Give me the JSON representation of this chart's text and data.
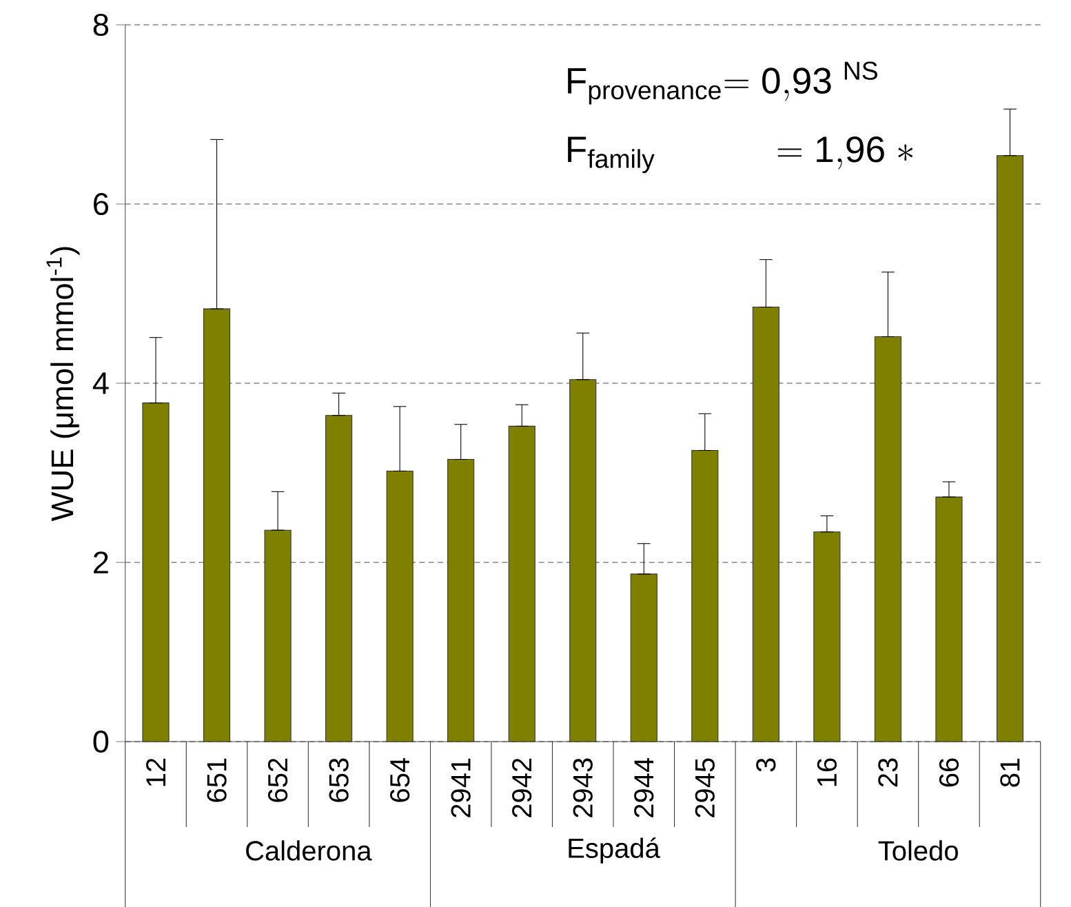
{
  "chart_data": {
    "type": "bar",
    "ylabel": "WUE (μmol mmol$^{-1}$)",
    "categories": [
      "12",
      "651",
      "652",
      "653",
      "654",
      "2941",
      "2942",
      "2943",
      "2944",
      "2945",
      "3",
      "16",
      "23",
      "66",
      "81"
    ],
    "values": [
      3.78,
      4.83,
      2.36,
      3.64,
      3.02,
      3.15,
      3.52,
      4.04,
      1.87,
      3.25,
      4.85,
      2.34,
      4.52,
      2.73,
      6.54
    ],
    "errors": [
      [
        3.78,
        4.51
      ],
      [
        4.83,
        6.72
      ],
      [
        2.36,
        2.79
      ],
      [
        3.64,
        3.89
      ],
      [
        3.02,
        3.74
      ],
      [
        3.15,
        3.54
      ],
      [
        3.52,
        3.76
      ],
      [
        4.04,
        4.56
      ],
      [
        1.87,
        2.21
      ],
      [
        3.25,
        3.66
      ],
      [
        4.85,
        5.38
      ],
      [
        2.34,
        2.52
      ],
      [
        4.52,
        5.24
      ],
      [
        2.73,
        2.9
      ],
      [
        6.54,
        7.06
      ]
    ],
    "color": "#808000",
    "ylim": [
      0,
      8
    ],
    "yticks": [
      0,
      2,
      4,
      6,
      8
    ],
    "grid": "y",
    "annotations": [
      "\\mathrm{F}_{\\mathrm{provenance}}\\mathrm{=0{,}93}\\ ^{\\mathrm{NS}}",
      "\\mathrm{F}_{\\mathrm{family}}\\qquad\\quad\\ \\mathrm{=1{,}96}\\ \\mathrm{*}",
      "Calderona",
      "Espadá",
      "Toledo"
    ]
  }
}
